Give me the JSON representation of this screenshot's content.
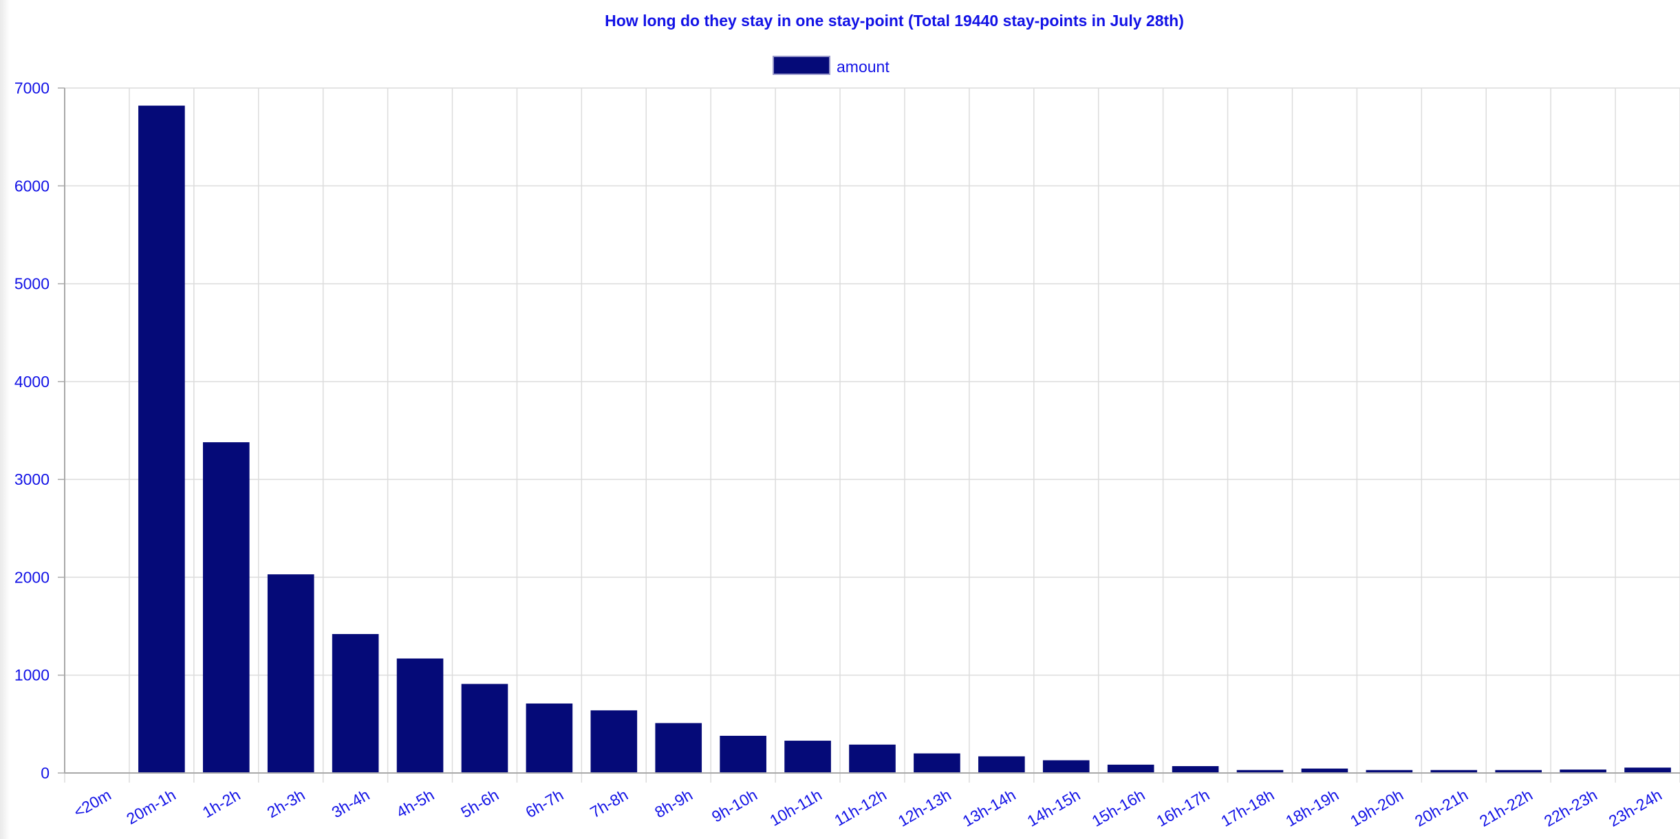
{
  "colors": {
    "bar": "#050a78",
    "text": "#1212e6",
    "grid": "#dcdcdc",
    "axis": "#a8a8a8"
  },
  "chart_data": {
    "type": "bar",
    "title": "How long do they stay in one stay-point (Total 19440 stay-points in July 28th)",
    "xlabel": "",
    "ylabel": "",
    "ylim": [
      0,
      7000
    ],
    "yticks": [
      "0",
      "1000",
      "2000",
      "3000",
      "4000",
      "5000",
      "6000",
      "7000"
    ],
    "grid": true,
    "legend_position": "top-center",
    "categories": [
      "<20m",
      "20m-1h",
      "1h-2h",
      "2h-3h",
      "3h-4h",
      "4h-5h",
      "5h-6h",
      "6h-7h",
      "7h-8h",
      "8h-9h",
      "9h-10h",
      "10h-11h",
      "11h-12h",
      "12h-13h",
      "13h-14h",
      "14h-15h",
      "15h-16h",
      "16h-17h",
      "17h-18h",
      "18h-19h",
      "19h-20h",
      "20h-21h",
      "21h-22h",
      "22h-23h",
      "23h-24h"
    ],
    "series": [
      {
        "name": "amount",
        "values": [
          0,
          6820,
          3380,
          2030,
          1420,
          1170,
          910,
          710,
          640,
          510,
          380,
          330,
          290,
          200,
          170,
          130,
          85,
          70,
          30,
          45,
          30,
          30,
          30,
          35,
          55
        ]
      }
    ]
  }
}
